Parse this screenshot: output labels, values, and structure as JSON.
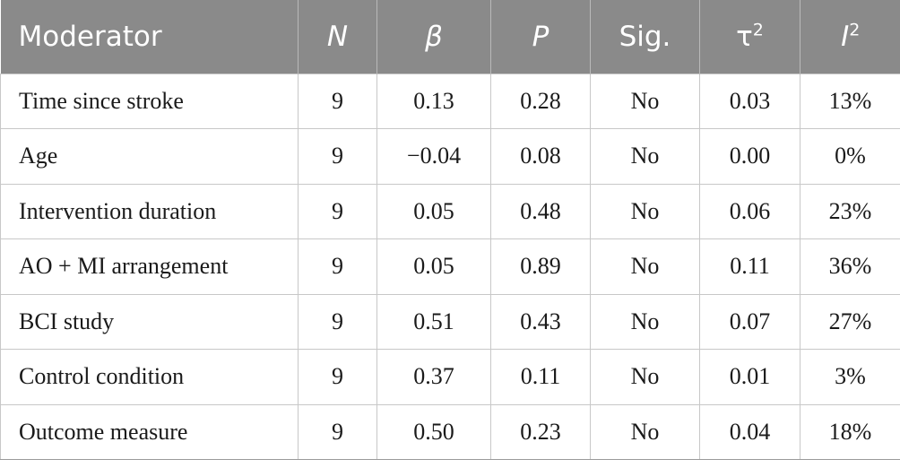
{
  "header": {
    "moderator": "Moderator",
    "n": "N",
    "beta": "β",
    "p": "P",
    "sig": "Sig.",
    "tau_base": "τ",
    "tau_sup": "2",
    "i_base": "I",
    "i_sup": "2"
  },
  "rows": [
    {
      "moderator": "Time since stroke",
      "n": "9",
      "beta": "0.13",
      "p": "0.28",
      "sig": "No",
      "tau2": "0.03",
      "i2": "13%"
    },
    {
      "moderator": "Age",
      "n": "9",
      "beta": "−0.04",
      "p": "0.08",
      "sig": "No",
      "tau2": "0.00",
      "i2": "0%"
    },
    {
      "moderator": "Intervention duration",
      "n": "9",
      "beta": "0.05",
      "p": "0.48",
      "sig": "No",
      "tau2": "0.06",
      "i2": "23%"
    },
    {
      "moderator": "AO + MI arrangement",
      "n": "9",
      "beta": "0.05",
      "p": "0.89",
      "sig": "No",
      "tau2": "0.11",
      "i2": "36%"
    },
    {
      "moderator": "BCI study",
      "n": "9",
      "beta": "0.51",
      "p": "0.43",
      "sig": "No",
      "tau2": "0.07",
      "i2": "27%"
    },
    {
      "moderator": "Control condition",
      "n": "9",
      "beta": "0.37",
      "p": "0.11",
      "sig": "No",
      "tau2": "0.01",
      "i2": "3%"
    },
    {
      "moderator": "Outcome measure",
      "n": "9",
      "beta": "0.50",
      "p": "0.23",
      "sig": "No",
      "tau2": "0.04",
      "i2": "18%"
    }
  ],
  "colors": {
    "header_bg": "#8a8a8a",
    "header_text": "#ffffff",
    "grid": "#c8c8c8"
  }
}
